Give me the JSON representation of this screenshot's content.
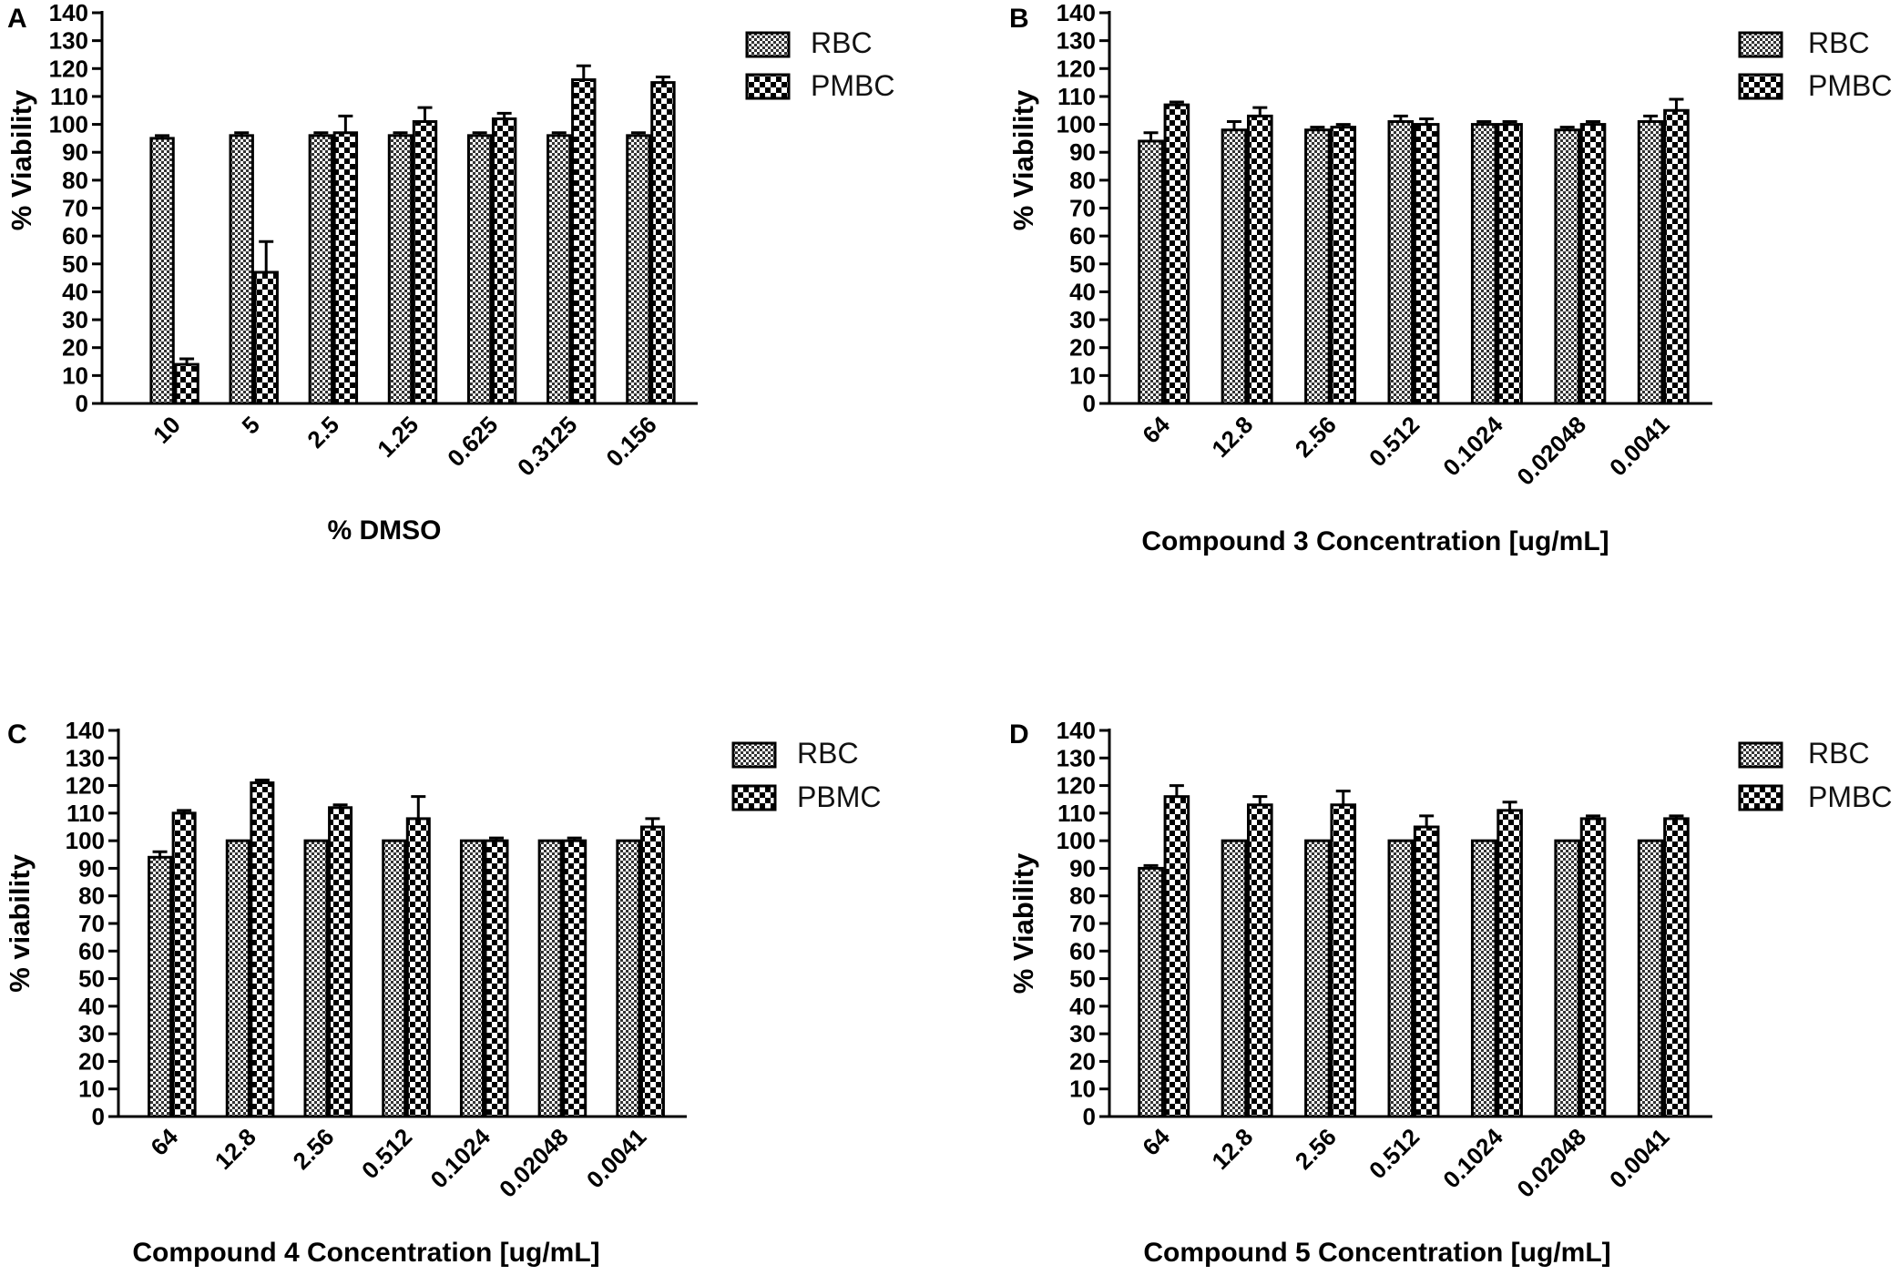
{
  "colors": {
    "ink": "#000000",
    "bg": "#ffffff"
  },
  "chart_data": [
    {
      "type": "bar",
      "panel": "A",
      "xlabel": "% DMSO",
      "ylabel": "% Viability",
      "ylim": [
        0,
        140
      ],
      "yticks": [
        "0",
        "10",
        "20",
        "30",
        "40",
        "50",
        "60",
        "70",
        "80",
        "90",
        "100",
        "110",
        "120",
        "130",
        "140"
      ],
      "categories": [
        "10",
        "5",
        "2.5",
        "1.25",
        "0.625",
        "0.3125",
        "0.156"
      ],
      "series": [
        {
          "name": "RBC",
          "values": [
            95,
            96,
            96,
            96,
            96,
            96,
            96
          ],
          "errors": [
            1,
            1,
            1,
            1,
            1,
            1,
            1
          ]
        },
        {
          "name": "PMBC",
          "values": [
            14,
            47,
            97,
            101,
            102,
            116,
            115
          ],
          "errors": [
            2,
            11,
            6,
            5,
            2,
            5,
            2
          ]
        }
      ],
      "legend": [
        "RBC",
        "PMBC"
      ]
    },
    {
      "type": "bar",
      "panel": "B",
      "xlabel": "Compound 3 Concentration [ug/mL]",
      "ylabel": "% Viability",
      "ylim": [
        0,
        140
      ],
      "yticks": [
        "0",
        "10",
        "20",
        "30",
        "40",
        "50",
        "60",
        "70",
        "80",
        "90",
        "100",
        "110",
        "120",
        "130",
        "140"
      ],
      "categories": [
        "64",
        "12.8",
        "2.56",
        "0.512",
        "0.1024",
        "0.02048",
        "0.0041"
      ],
      "series": [
        {
          "name": "RBC",
          "values": [
            94,
            98,
            98,
            101,
            100,
            98,
            101
          ],
          "errors": [
            3,
            3,
            1,
            2,
            1,
            1,
            2
          ]
        },
        {
          "name": "PMBC",
          "values": [
            107,
            103,
            99,
            100,
            100,
            100,
            105
          ],
          "errors": [
            1,
            3,
            1,
            2,
            1,
            1,
            4
          ]
        }
      ],
      "legend": [
        "RBC",
        "PMBC"
      ]
    },
    {
      "type": "bar",
      "panel": "C",
      "xlabel": "Compound 4 Concentration [ug/mL]",
      "ylabel": "% viability",
      "ylim": [
        0,
        140
      ],
      "yticks": [
        "0",
        "10",
        "20",
        "30",
        "40",
        "50",
        "60",
        "70",
        "80",
        "90",
        "100",
        "110",
        "120",
        "130",
        "140"
      ],
      "categories": [
        "64",
        "12.8",
        "2.56",
        "0.512",
        "0.1024",
        "0.02048",
        "0.0041"
      ],
      "series": [
        {
          "name": "RBC",
          "values": [
            94,
            100,
            100,
            100,
            100,
            100,
            100
          ],
          "errors": [
            2,
            0,
            0,
            0,
            0,
            0,
            0
          ]
        },
        {
          "name": "PBMC",
          "values": [
            110,
            121,
            112,
            108,
            100,
            100,
            105
          ],
          "errors": [
            1,
            1,
            1,
            8,
            1,
            1,
            3
          ]
        }
      ],
      "legend": [
        "RBC",
        "PBMC"
      ]
    },
    {
      "type": "bar",
      "panel": "D",
      "xlabel": "Compound 5 Concentration [ug/mL]",
      "ylabel": "% Viability",
      "ylim": [
        0,
        140
      ],
      "yticks": [
        "0",
        "10",
        "20",
        "30",
        "40",
        "50",
        "60",
        "70",
        "80",
        "90",
        "100",
        "110",
        "120",
        "130",
        "140"
      ],
      "categories": [
        "64",
        "12.8",
        "2.56",
        "0.512",
        "0.1024",
        "0.02048",
        "0.0041"
      ],
      "series": [
        {
          "name": "RBC",
          "values": [
            90,
            100,
            100,
            100,
            100,
            100,
            100
          ],
          "errors": [
            1,
            0,
            0,
            0,
            0,
            0,
            0
          ]
        },
        {
          "name": "PMBC",
          "values": [
            116,
            113,
            113,
            105,
            111,
            108,
            108
          ],
          "errors": [
            4,
            3,
            5,
            4,
            3,
            1,
            1
          ]
        }
      ],
      "legend": [
        "RBC",
        "PMBC"
      ]
    }
  ]
}
